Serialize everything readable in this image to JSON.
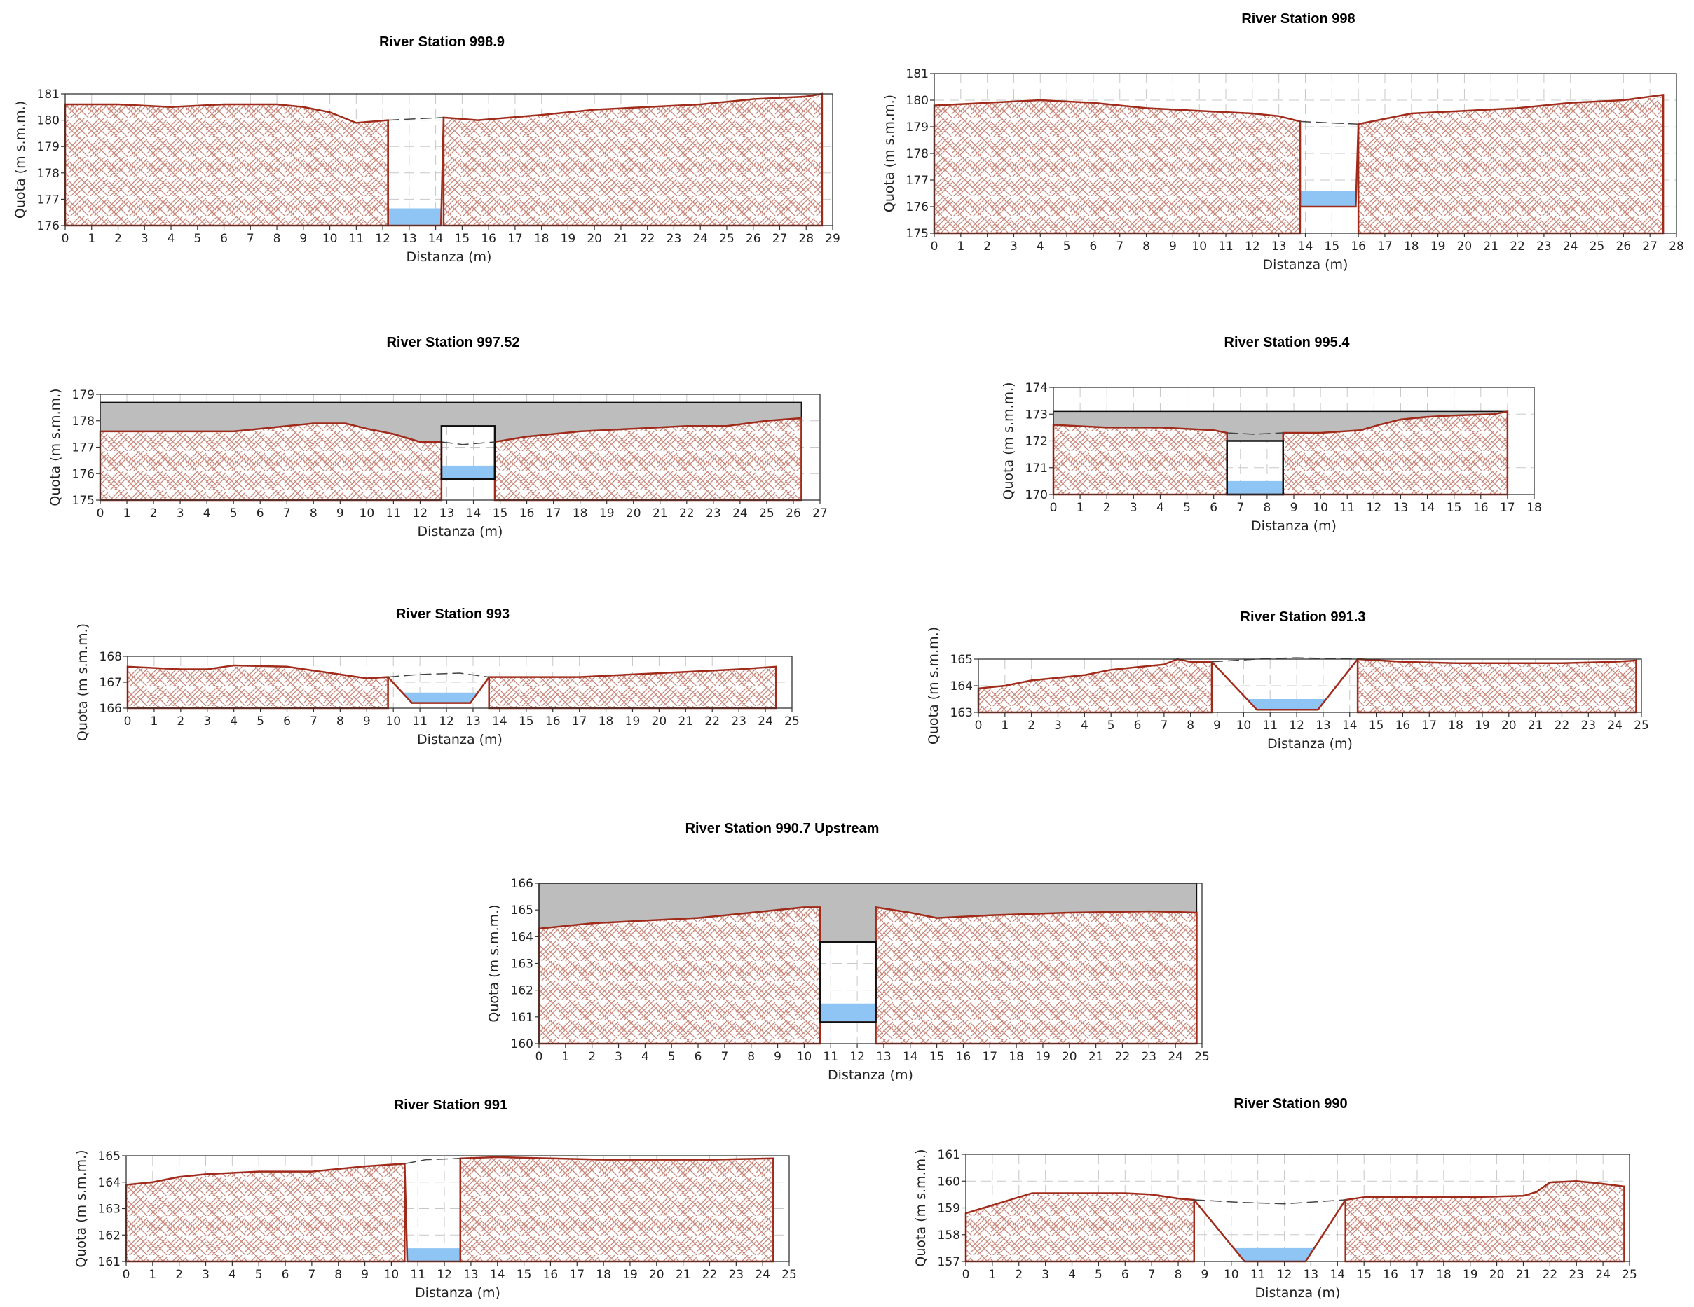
{
  "chart_data": [
    {
      "type": "area",
      "title": "River Station 998.9",
      "xlabel": "Distanza  (m)",
      "ylabel": "Quota  (m  s.m.m.)",
      "xlim": [
        0,
        29
      ],
      "ylim": [
        176,
        181
      ],
      "x_ticks": [
        0,
        1,
        2,
        3,
        4,
        5,
        6,
        7,
        8,
        9,
        10,
        11,
        12,
        13,
        14,
        15,
        16,
        17,
        18,
        19,
        20,
        21,
        22,
        23,
        24,
        25,
        26,
        27,
        28,
        29
      ],
      "y_ticks": [
        176,
        177,
        178,
        179,
        180,
        181
      ],
      "grid": true,
      "left_ground": [
        [
          0,
          180.6
        ],
        [
          2,
          180.6
        ],
        [
          4,
          180.5
        ],
        [
          6,
          180.6
        ],
        [
          8,
          180.6
        ],
        [
          9,
          180.5
        ],
        [
          10,
          180.3
        ],
        [
          11,
          179.9
        ],
        [
          12.2,
          180.0
        ]
      ],
      "channel": [
        [
          12.2,
          180.0
        ],
        [
          12.2,
          176.0
        ],
        [
          14.2,
          176.0
        ],
        [
          14.3,
          180.1
        ]
      ],
      "right_ground": [
        [
          14.3,
          180.1
        ],
        [
          15.6,
          180.0
        ],
        [
          18,
          180.2
        ],
        [
          20,
          180.4
        ],
        [
          22,
          180.5
        ],
        [
          24,
          180.6
        ],
        [
          26,
          180.8
        ],
        [
          28,
          180.9
        ],
        [
          28.6,
          181.0
        ]
      ],
      "water_surface": 176.65,
      "energy_line": [
        [
          12.2,
          180.0
        ],
        [
          13.2,
          180.05
        ],
        [
          14.3,
          180.1
        ]
      ],
      "deck": null,
      "opening": null
    },
    {
      "type": "area",
      "title": "River Station 998",
      "xlabel": "Distanza  (m)",
      "ylabel": "Quota  (m  s.m.m.)",
      "xlim": [
        0,
        28
      ],
      "ylim": [
        175,
        181
      ],
      "x_ticks": [
        0,
        1,
        2,
        3,
        4,
        5,
        6,
        7,
        8,
        9,
        10,
        11,
        12,
        13,
        14,
        15,
        16,
        17,
        18,
        19,
        20,
        21,
        22,
        23,
        24,
        25,
        26,
        27,
        28
      ],
      "y_ticks": [
        175,
        176,
        177,
        178,
        179,
        180,
        181
      ],
      "grid": true,
      "left_ground": [
        [
          0,
          179.8
        ],
        [
          2,
          179.9
        ],
        [
          4,
          180.0
        ],
        [
          6,
          179.9
        ],
        [
          8,
          179.7
        ],
        [
          10,
          179.6
        ],
        [
          12,
          179.5
        ],
        [
          13,
          179.4
        ],
        [
          13.8,
          179.2
        ]
      ],
      "channel": [
        [
          13.8,
          179.2
        ],
        [
          13.8,
          176.0
        ],
        [
          15.9,
          176.0
        ],
        [
          16.0,
          179.1
        ]
      ],
      "right_ground": [
        [
          16.0,
          179.1
        ],
        [
          17,
          179.3
        ],
        [
          18,
          179.5
        ],
        [
          20,
          179.6
        ],
        [
          22,
          179.7
        ],
        [
          24,
          179.9
        ],
        [
          26,
          180.0
        ],
        [
          27.5,
          180.2
        ]
      ],
      "water_surface": 176.6,
      "energy_line": [
        [
          13.8,
          179.2
        ],
        [
          14.8,
          179.15
        ],
        [
          16.0,
          179.1
        ]
      ],
      "deck": null,
      "opening": null
    },
    {
      "type": "area",
      "title": "River Station 997.52",
      "xlabel": "Distanza  (m)",
      "ylabel": "Quota  (m  s.m.m.)",
      "xlim": [
        0,
        27
      ],
      "ylim": [
        175,
        179
      ],
      "x_ticks": [
        0,
        1,
        2,
        3,
        4,
        5,
        6,
        7,
        8,
        9,
        10,
        11,
        12,
        13,
        14,
        15,
        16,
        17,
        18,
        19,
        20,
        21,
        22,
        23,
        24,
        25,
        26,
        27
      ],
      "y_ticks": [
        175,
        176,
        177,
        178,
        179
      ],
      "grid": true,
      "left_ground": [
        [
          0,
          177.6
        ],
        [
          2,
          177.6
        ],
        [
          4,
          177.6
        ],
        [
          5,
          177.6
        ],
        [
          6,
          177.7
        ],
        [
          7,
          177.8
        ],
        [
          8,
          177.9
        ],
        [
          9.2,
          177.9
        ],
        [
          10,
          177.7
        ],
        [
          11,
          177.5
        ],
        [
          12,
          177.2
        ],
        [
          12.8,
          177.2
        ]
      ],
      "channel": [
        [
          12.8,
          177.2
        ],
        [
          12.8,
          175.8
        ],
        [
          14.8,
          175.8
        ],
        [
          14.8,
          177.2
        ]
      ],
      "right_ground": [
        [
          14.8,
          177.2
        ],
        [
          16,
          177.4
        ],
        [
          18,
          177.6
        ],
        [
          20,
          177.7
        ],
        [
          22,
          177.8
        ],
        [
          23.5,
          177.8
        ],
        [
          25,
          178.0
        ],
        [
          26.3,
          178.1
        ]
      ],
      "water_surface": 176.3,
      "energy_line": [
        [
          12.8,
          177.2
        ],
        [
          13.6,
          177.1
        ],
        [
          14.8,
          177.2
        ]
      ],
      "deck": {
        "x0": 0,
        "x1": 26.3,
        "top": 178.7
      },
      "opening": {
        "x0": 12.8,
        "x1": 14.8,
        "top": 177.8,
        "bottom": 175.8
      }
    },
    {
      "type": "area",
      "title": "River Station 995.4",
      "xlabel": "Distanza  (m)",
      "ylabel": "Quota  (m  s.m.m.)",
      "xlim": [
        0,
        18
      ],
      "ylim": [
        170,
        174
      ],
      "x_ticks": [
        0,
        1,
        2,
        3,
        4,
        5,
        6,
        7,
        8,
        9,
        10,
        11,
        12,
        13,
        14,
        15,
        16,
        17,
        18
      ],
      "y_ticks": [
        170,
        171,
        172,
        173,
        174
      ],
      "grid": true,
      "left_ground": [
        [
          0,
          172.6
        ],
        [
          2,
          172.5
        ],
        [
          4,
          172.5
        ],
        [
          6,
          172.4
        ],
        [
          6.5,
          172.3
        ]
      ],
      "channel": [
        [
          6.5,
          172.3
        ],
        [
          6.5,
          170.0
        ],
        [
          8.6,
          170.0
        ],
        [
          8.6,
          172.3
        ]
      ],
      "right_ground": [
        [
          8.6,
          172.3
        ],
        [
          10,
          172.3
        ],
        [
          11.5,
          172.4
        ],
        [
          12.2,
          172.6
        ],
        [
          13,
          172.8
        ],
        [
          14,
          172.9
        ],
        [
          15,
          172.95
        ],
        [
          16.5,
          173.0
        ],
        [
          17,
          173.1
        ]
      ],
      "water_surface": 170.5,
      "energy_line": [
        [
          6.5,
          172.3
        ],
        [
          7.5,
          172.25
        ],
        [
          8.6,
          172.3
        ]
      ],
      "deck": {
        "x0": 0,
        "x1": 17,
        "top": 173.1
      },
      "opening": {
        "x0": 6.5,
        "x1": 8.6,
        "top": 172.0,
        "bottom": 170.0
      }
    },
    {
      "type": "area",
      "title": "River Station 993",
      "xlabel": "Distanza  (m)",
      "ylabel": "Quota  (m  s.m.m.)",
      "xlim": [
        0,
        25
      ],
      "ylim": [
        166,
        168
      ],
      "x_ticks": [
        0,
        1,
        2,
        3,
        4,
        5,
        6,
        7,
        8,
        9,
        10,
        11,
        12,
        13,
        14,
        15,
        16,
        17,
        18,
        19,
        20,
        21,
        22,
        23,
        24,
        25
      ],
      "y_ticks": [
        166,
        167,
        168
      ],
      "grid": true,
      "left_ground": [
        [
          0,
          167.6
        ],
        [
          2,
          167.5
        ],
        [
          3,
          167.5
        ],
        [
          4,
          167.65
        ],
        [
          6,
          167.6
        ],
        [
          7,
          167.45
        ],
        [
          8,
          167.3
        ],
        [
          9,
          167.15
        ],
        [
          9.8,
          167.2
        ]
      ],
      "channel": [
        [
          9.8,
          167.2
        ],
        [
          10.7,
          166.2
        ],
        [
          12.9,
          166.2
        ],
        [
          13.6,
          167.2
        ]
      ],
      "right_ground": [
        [
          13.6,
          167.2
        ],
        [
          15,
          167.2
        ],
        [
          17,
          167.2
        ],
        [
          19,
          167.3
        ],
        [
          21,
          167.4
        ],
        [
          23,
          167.5
        ],
        [
          24.4,
          167.6
        ]
      ],
      "water_surface": 166.6,
      "energy_line": [
        [
          9.8,
          167.2
        ],
        [
          11,
          167.3
        ],
        [
          12.5,
          167.35
        ],
        [
          13.6,
          167.2
        ]
      ],
      "deck": null,
      "opening": null
    },
    {
      "type": "area",
      "title": "River Station 991.3",
      "xlabel": "Distanza  (m)",
      "ylabel": "Quota  (m  s.m.m.)",
      "xlim": [
        0,
        25
      ],
      "ylim": [
        163,
        165
      ],
      "x_ticks": [
        0,
        1,
        2,
        3,
        4,
        5,
        6,
        7,
        8,
        9,
        10,
        11,
        12,
        13,
        14,
        15,
        16,
        17,
        18,
        19,
        20,
        21,
        22,
        23,
        24,
        25
      ],
      "y_ticks": [
        163,
        164,
        165
      ],
      "grid": true,
      "left_ground": [
        [
          0,
          163.9
        ],
        [
          1,
          164.0
        ],
        [
          2,
          164.2
        ],
        [
          3,
          164.3
        ],
        [
          4,
          164.4
        ],
        [
          5,
          164.6
        ],
        [
          6,
          164.7
        ],
        [
          7,
          164.8
        ],
        [
          7.5,
          165.0
        ],
        [
          8,
          164.9
        ],
        [
          8.8,
          164.9
        ]
      ],
      "channel": [
        [
          8.8,
          164.9
        ],
        [
          10.5,
          163.1
        ],
        [
          12.8,
          163.1
        ],
        [
          14.3,
          165.0
        ]
      ],
      "right_ground": [
        [
          14.3,
          165.0
        ],
        [
          16,
          164.9
        ],
        [
          18,
          164.85
        ],
        [
          20,
          164.85
        ],
        [
          22,
          164.85
        ],
        [
          24,
          164.9
        ],
        [
          24.8,
          164.95
        ]
      ],
      "water_surface": 163.5,
      "energy_line": [
        [
          8.8,
          164.9
        ],
        [
          10.5,
          165.0
        ],
        [
          12,
          165.05
        ],
        [
          14.3,
          165.0
        ]
      ],
      "deck": null,
      "opening": null
    },
    {
      "type": "area",
      "title": "River Station 990.7 Upstream",
      "xlabel": "Distanza  (m)",
      "ylabel": "Quota  (m  s.m.m.)",
      "xlim": [
        0,
        25
      ],
      "ylim": [
        160,
        166
      ],
      "x_ticks": [
        0,
        1,
        2,
        3,
        4,
        5,
        6,
        7,
        8,
        9,
        10,
        11,
        12,
        13,
        14,
        15,
        16,
        17,
        18,
        19,
        20,
        21,
        22,
        23,
        24,
        25
      ],
      "y_ticks": [
        160,
        161,
        162,
        163,
        164,
        165,
        166
      ],
      "grid": true,
      "left_ground": [
        [
          0,
          164.3
        ],
        [
          2,
          164.5
        ],
        [
          4,
          164.6
        ],
        [
          6,
          164.7
        ],
        [
          8,
          164.9
        ],
        [
          10,
          165.1
        ],
        [
          10.6,
          165.1
        ]
      ],
      "channel": [
        [
          10.6,
          165.1
        ],
        [
          10.6,
          160.8
        ],
        [
          12.7,
          160.8
        ],
        [
          12.7,
          165.1
        ]
      ],
      "right_ground": [
        [
          12.7,
          165.1
        ],
        [
          14,
          164.9
        ],
        [
          15,
          164.7
        ],
        [
          17,
          164.8
        ],
        [
          20,
          164.9
        ],
        [
          23,
          164.95
        ],
        [
          24.8,
          164.9
        ]
      ],
      "water_surface": 161.5,
      "energy_line": null,
      "deck": {
        "x0": 0,
        "x1": 24.8,
        "top": 166.0
      },
      "opening": {
        "x0": 10.6,
        "x1": 12.7,
        "top": 163.8,
        "bottom": 160.8
      }
    },
    {
      "type": "area",
      "title": "River Station 991",
      "xlabel": "Distanza  (m)",
      "ylabel": "Quota  (m  s.m.m.)",
      "xlim": [
        0,
        25
      ],
      "ylim": [
        161,
        165
      ],
      "x_ticks": [
        0,
        1,
        2,
        3,
        4,
        5,
        6,
        7,
        8,
        9,
        10,
        11,
        12,
        13,
        14,
        15,
        16,
        17,
        18,
        19,
        20,
        21,
        22,
        23,
        24,
        25
      ],
      "y_ticks": [
        161,
        162,
        163,
        164,
        165
      ],
      "grid": true,
      "left_ground": [
        [
          0,
          163.9
        ],
        [
          1,
          164.0
        ],
        [
          2,
          164.2
        ],
        [
          3,
          164.3
        ],
        [
          4,
          164.35
        ],
        [
          5,
          164.4
        ],
        [
          7,
          164.4
        ],
        [
          8,
          164.5
        ],
        [
          9,
          164.6
        ],
        [
          10.5,
          164.7
        ]
      ],
      "channel": [
        [
          10.5,
          164.7
        ],
        [
          10.6,
          161.0
        ],
        [
          12.6,
          161.0
        ],
        [
          12.6,
          164.9
        ]
      ],
      "right_ground": [
        [
          12.6,
          164.9
        ],
        [
          14,
          164.95
        ],
        [
          16,
          164.9
        ],
        [
          18,
          164.85
        ],
        [
          20,
          164.85
        ],
        [
          22,
          164.85
        ],
        [
          24.4,
          164.9
        ]
      ],
      "water_surface": 161.5,
      "energy_line": [
        [
          10.5,
          164.7
        ],
        [
          11.3,
          164.85
        ],
        [
          12.6,
          164.9
        ]
      ],
      "deck": null,
      "opening": null
    },
    {
      "type": "area",
      "title": "River Station 990",
      "xlabel": "Distanza  (m)",
      "ylabel": "Quota  (m  s.m.m.)",
      "xlim": [
        0,
        25
      ],
      "ylim": [
        157,
        161
      ],
      "x_ticks": [
        0,
        1,
        2,
        3,
        4,
        5,
        6,
        7,
        8,
        9,
        10,
        11,
        12,
        13,
        14,
        15,
        16,
        17,
        18,
        19,
        20,
        21,
        22,
        23,
        24,
        25
      ],
      "y_ticks": [
        157,
        158,
        159,
        160,
        161
      ],
      "grid": true,
      "left_ground": [
        [
          0,
          158.8
        ],
        [
          1,
          159.1
        ],
        [
          2,
          159.4
        ],
        [
          2.5,
          159.55
        ],
        [
          4,
          159.55
        ],
        [
          6,
          159.55
        ],
        [
          7,
          159.5
        ],
        [
          8,
          159.35
        ],
        [
          8.6,
          159.3
        ]
      ],
      "channel": [
        [
          8.6,
          159.3
        ],
        [
          10.5,
          157.0
        ],
        [
          12.8,
          157.0
        ],
        [
          14.3,
          159.3
        ]
      ],
      "right_ground": [
        [
          14.3,
          159.3
        ],
        [
          15,
          159.4
        ],
        [
          17,
          159.4
        ],
        [
          19,
          159.4
        ],
        [
          21,
          159.45
        ],
        [
          21.5,
          159.6
        ],
        [
          22,
          159.95
        ],
        [
          23,
          160.0
        ],
        [
          24,
          159.9
        ],
        [
          24.8,
          159.8
        ]
      ],
      "water_surface": 157.5,
      "energy_line": [
        [
          8.6,
          159.3
        ],
        [
          10.5,
          159.2
        ],
        [
          12,
          159.15
        ],
        [
          14.3,
          159.3
        ]
      ],
      "deck": null,
      "opening": null
    }
  ]
}
